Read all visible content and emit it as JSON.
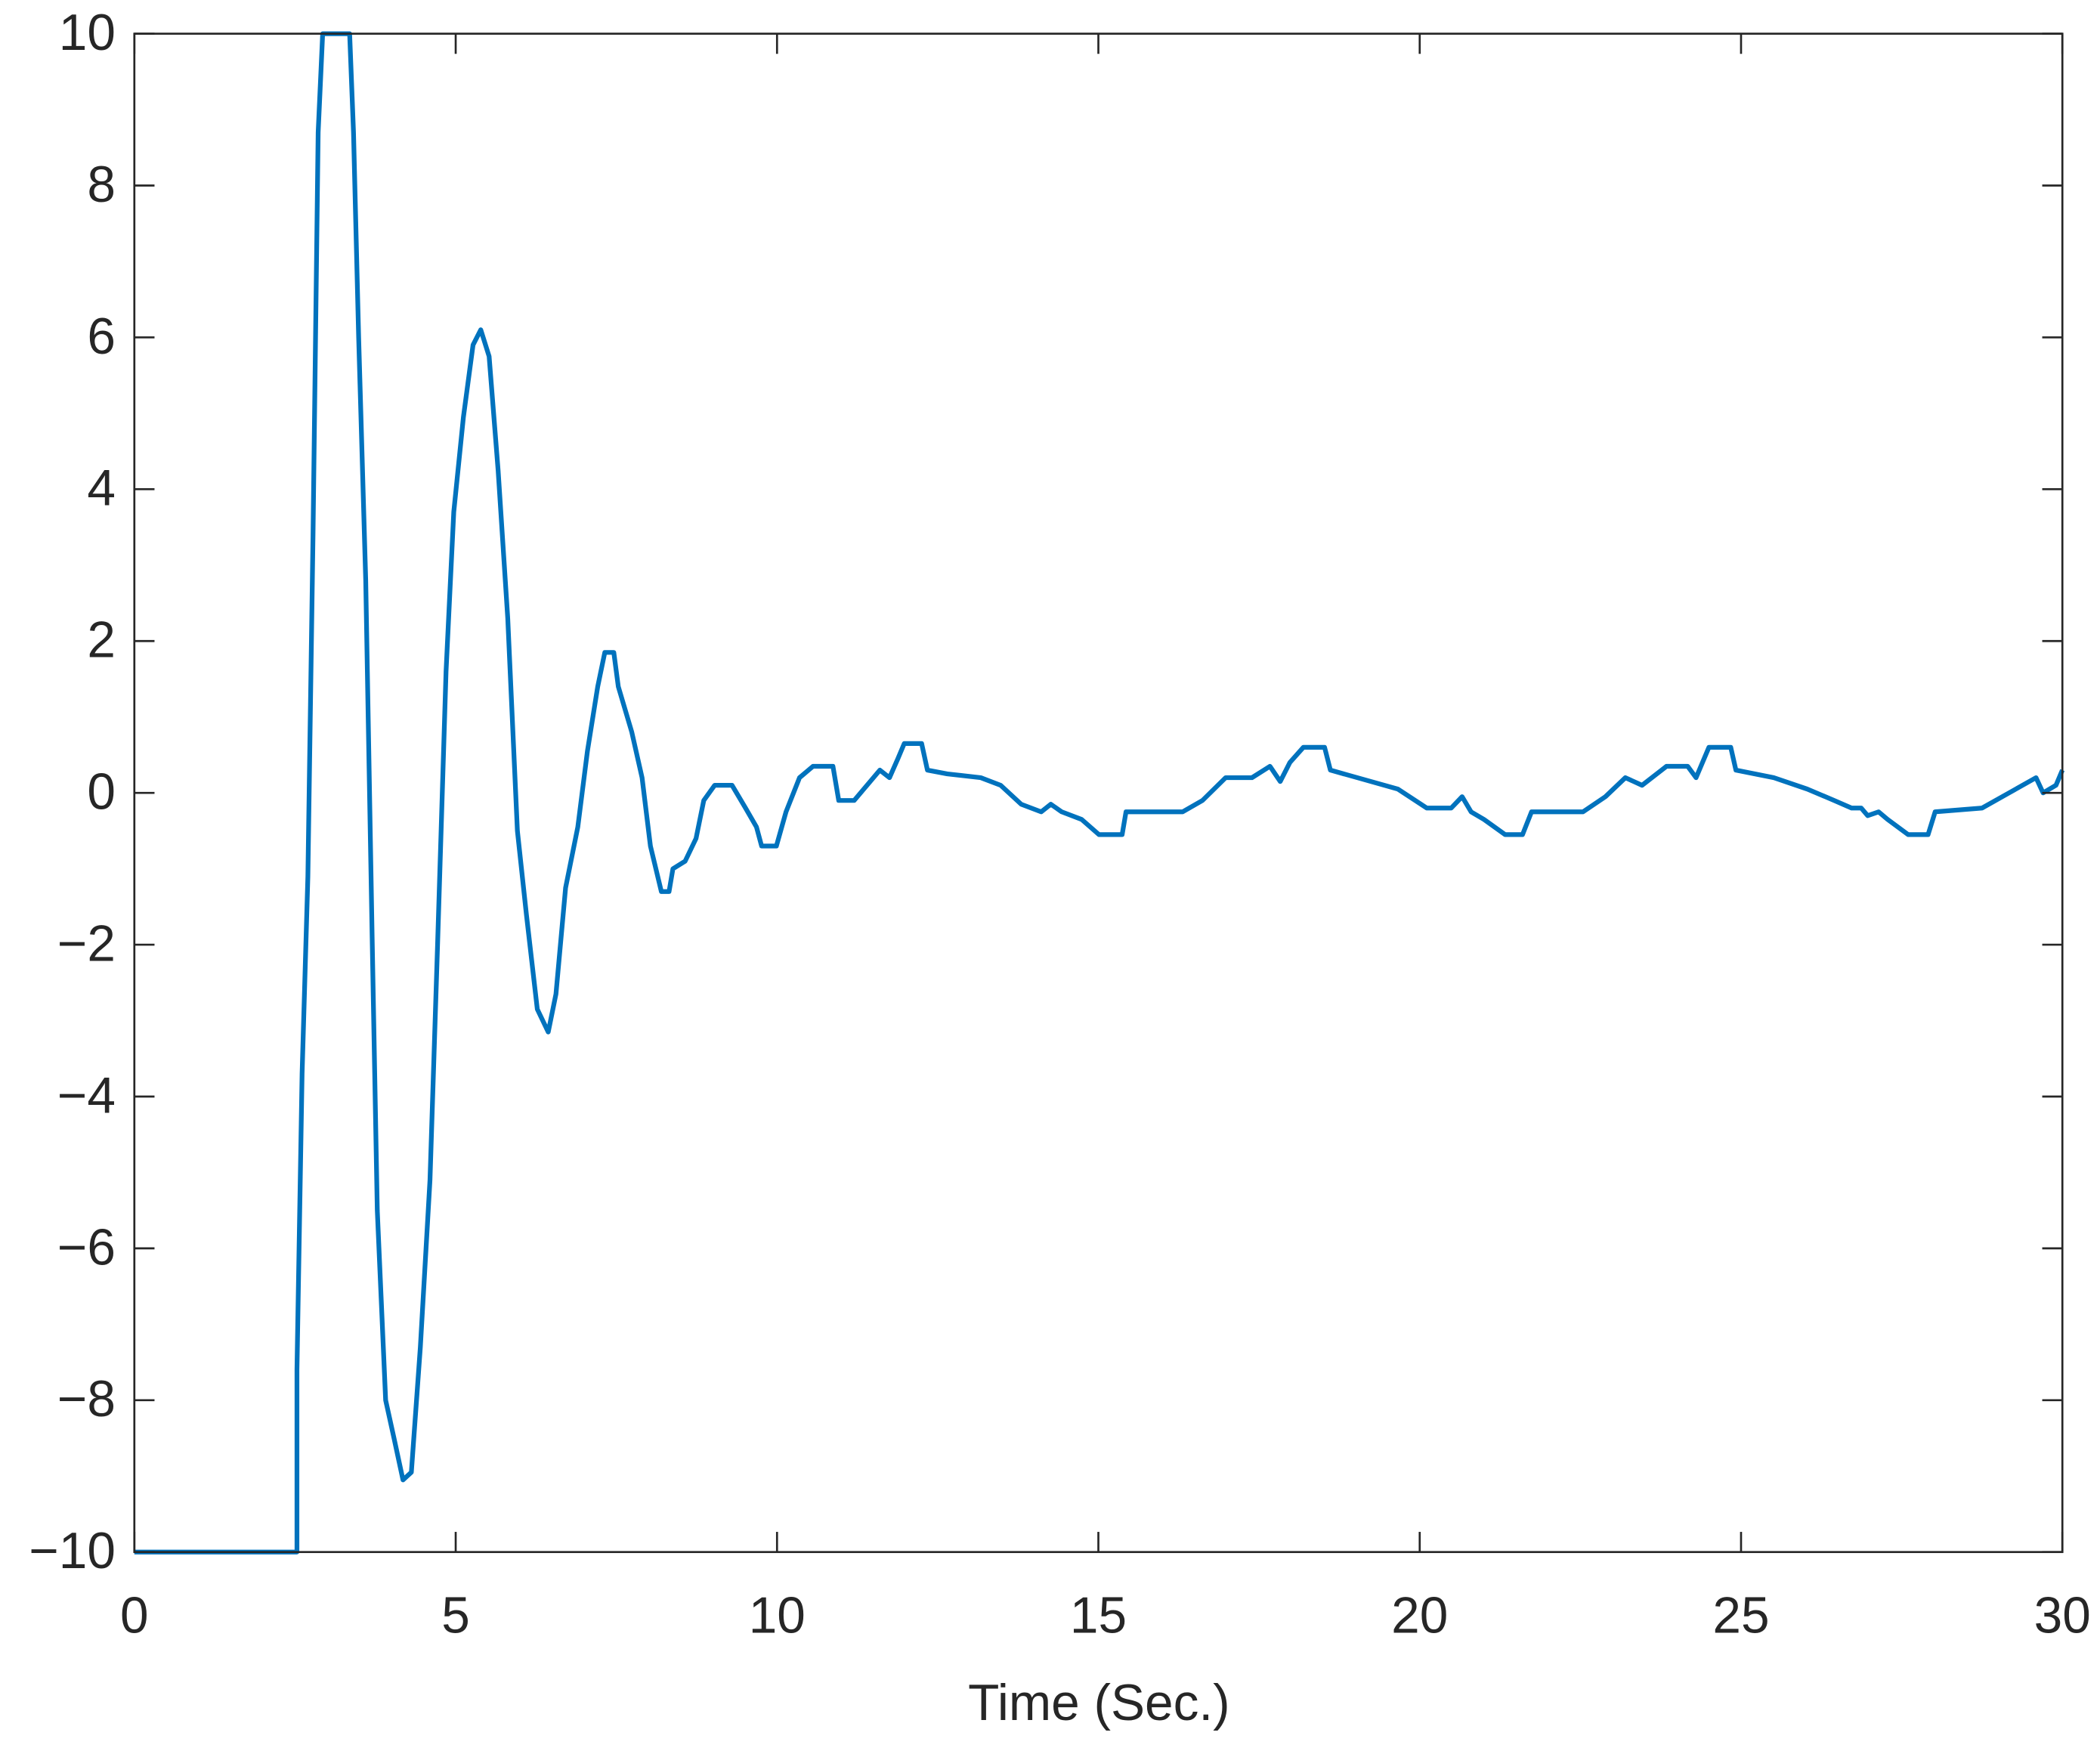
{
  "chart_data": {
    "type": "line",
    "x_label": "Time (Sec.)",
    "xlim": [
      0,
      30
    ],
    "ylim": [
      -10,
      10
    ],
    "xticks": [
      0,
      5,
      10,
      15,
      20,
      25,
      30
    ],
    "yticks": [
      {
        "value": -10,
        "label": "−10"
      },
      {
        "value": -8,
        "label": "−8"
      },
      {
        "value": -6,
        "label": "−6"
      },
      {
        "value": -4,
        "label": "−4"
      },
      {
        "value": -2,
        "label": "−2"
      },
      0,
      2,
      4,
      6,
      8,
      10
    ],
    "series": [
      {
        "color": "#0072bd",
        "x": [
          0,
          2.53,
          2.53,
          2.61,
          2.7,
          2.78,
          2.86,
          2.93,
          3.35,
          3.41,
          3.49,
          3.6,
          3.7,
          3.78,
          3.91,
          4.04,
          4.18,
          4.31,
          4.45,
          4.6,
          4.72,
          4.85,
          4.97,
          5.12,
          5.27,
          5.39,
          5.52,
          5.66,
          5.81,
          5.96,
          6.1,
          6.27,
          6.44,
          6.56,
          6.71,
          6.9,
          7.05,
          7.21,
          7.32,
          7.46,
          7.53,
          7.74,
          7.9,
          8.03,
          8.2,
          8.32,
          8.38,
          8.57,
          8.74,
          8.86,
          9.03,
          9.3,
          9.51,
          9.68,
          9.76,
          9.99,
          10.14,
          10.35,
          10.56,
          10.87,
          10.96,
          11.2,
          11.4,
          11.6,
          11.75,
          11.88,
          11.98,
          12.25,
          12.34,
          12.65,
          13.17,
          13.48,
          13.8,
          14.11,
          14.26,
          14.43,
          14.74,
          15.01,
          15.37,
          15.43,
          16.31,
          16.62,
          16.98,
          17.39,
          17.67,
          17.83,
          17.98,
          18.19,
          18.52,
          18.61,
          19.03,
          19.66,
          20.11,
          20.49,
          20.66,
          20.8,
          21.0,
          21.33,
          21.6,
          21.74,
          22.54,
          22.89,
          23.2,
          23.46,
          23.84,
          24.17,
          24.3,
          24.5,
          24.84,
          24.92,
          25.51,
          26.03,
          26.45,
          26.72,
          26.87,
          26.97,
          27.14,
          27.28,
          27.6,
          27.91,
          28.02,
          28.75,
          29.17,
          29.59,
          29.7,
          29.9,
          30
        ],
        "values": [
          -10,
          -10,
          -7.6,
          -3.7,
          -1.1,
          3.4,
          8.7,
          10,
          10,
          8.7,
          6,
          2.8,
          -1.9,
          -5.5,
          -8,
          -8.5,
          -9.05,
          -8.95,
          -7.3,
          -5.1,
          -1.95,
          1.6,
          3.7,
          4.95,
          5.9,
          6.1,
          5.75,
          4.25,
          2.3,
          -0.5,
          -1.6,
          -2.85,
          -3.15,
          -2.65,
          -1.25,
          -0.45,
          0.55,
          1.4,
          1.85,
          1.85,
          1.4,
          0.8,
          0.2,
          -0.7,
          -1.3,
          -1.3,
          -1.0,
          -0.9,
          -0.6,
          -0.1,
          0.1,
          0.1,
          -0.2,
          -0.45,
          -0.7,
          -0.7,
          -0.25,
          0.2,
          0.35,
          0.35,
          -0.1,
          -0.1,
          0.1,
          0.3,
          0.2,
          0.45,
          0.65,
          0.65,
          0.3,
          0.25,
          0.2,
          0.1,
          -0.15,
          -0.25,
          -0.15,
          -0.25,
          -0.35,
          -0.55,
          -0.55,
          -0.25,
          -0.25,
          -0.1,
          0.2,
          0.2,
          0.35,
          0.15,
          0.4,
          0.6,
          0.6,
          0.3,
          0.2,
          0.05,
          -0.2,
          -0.2,
          -0.05,
          -0.25,
          -0.35,
          -0.55,
          -0.55,
          -0.25,
          -0.25,
          -0.05,
          0.2,
          0.1,
          0.35,
          0.35,
          0.2,
          0.6,
          0.6,
          0.3,
          0.2,
          0.05,
          -0.1,
          -0.2,
          -0.2,
          -0.3,
          -0.25,
          -0.35,
          -0.55,
          -0.55,
          -0.25,
          -0.2,
          0,
          0.2,
          0,
          0.1,
          0.3
        ]
      }
    ]
  }
}
